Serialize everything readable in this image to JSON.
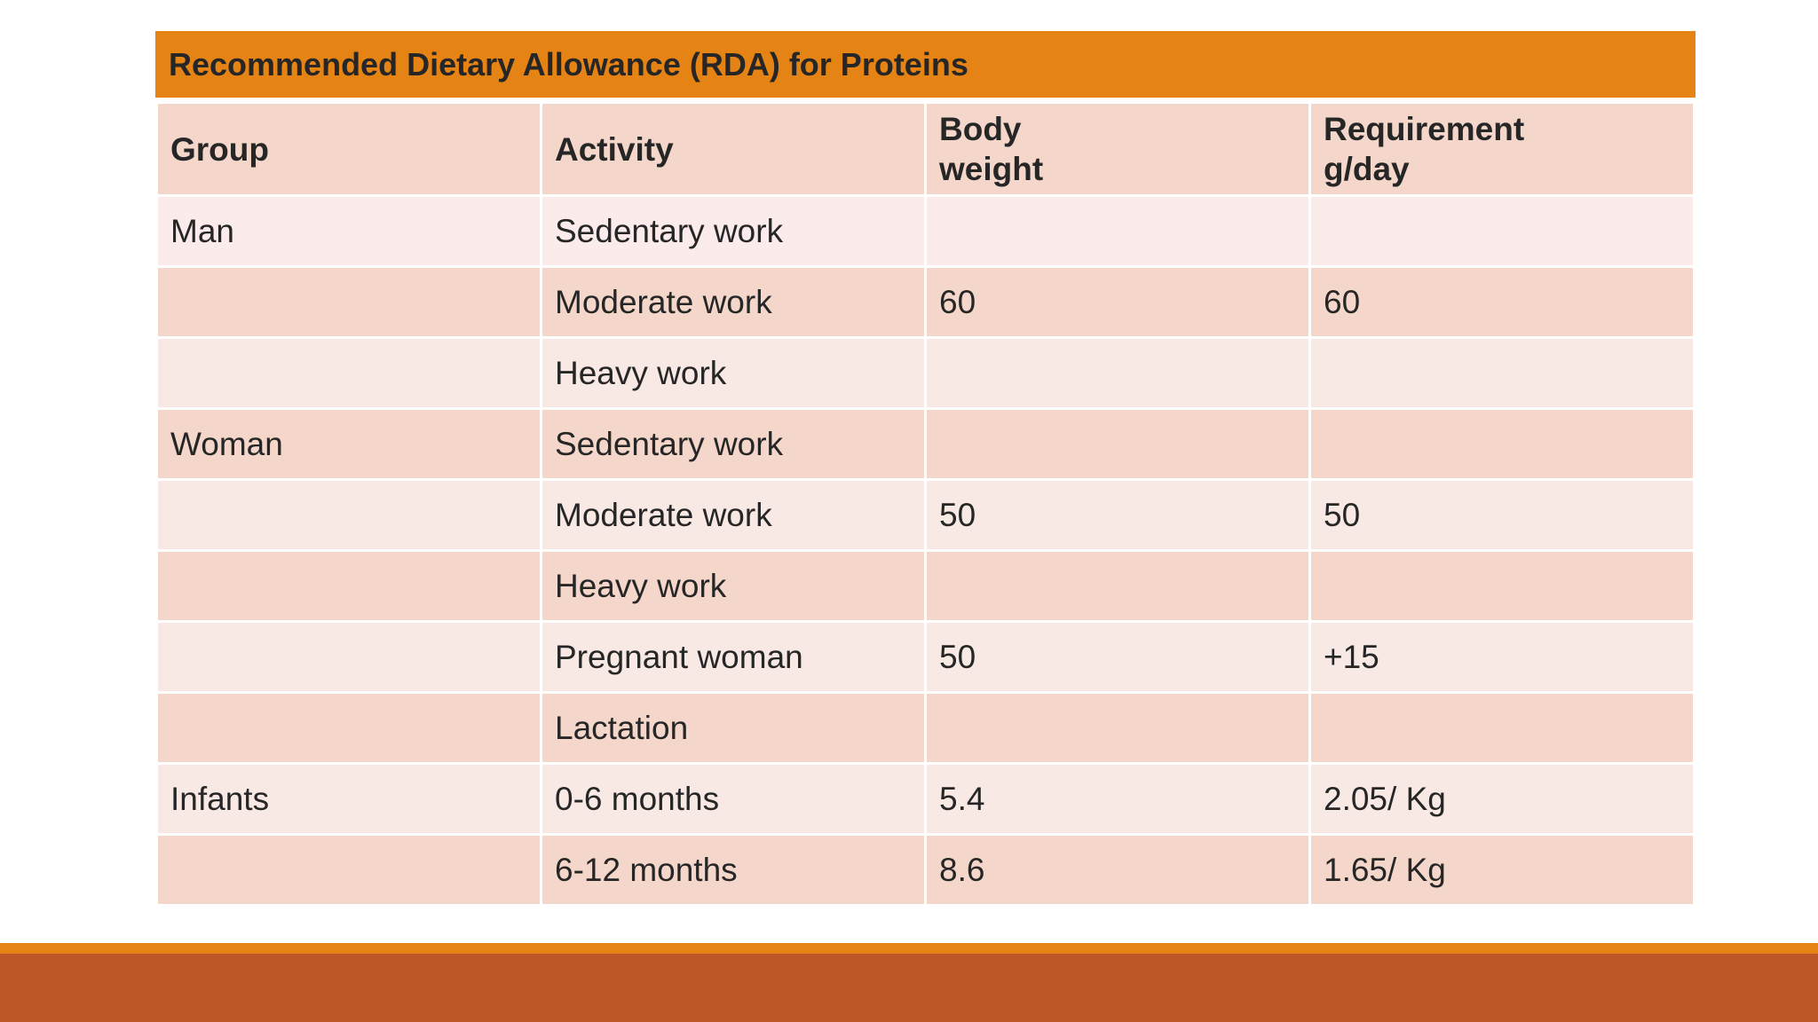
{
  "table": {
    "title": "Recommended Dietary Allowance (RDA) for Proteins",
    "headers": {
      "group": "Group",
      "activity": "Activity",
      "body_weight": "Body\nweight",
      "requirement": "Requirement\ng/day"
    },
    "rows": [
      {
        "group": "Man",
        "activity": "Sedentary work",
        "body_weight": "",
        "requirement": ""
      },
      {
        "group": "",
        "activity": "Moderate work",
        "body_weight": "60",
        "requirement": "60"
      },
      {
        "group": "",
        "activity": "Heavy work",
        "body_weight": "",
        "requirement": ""
      },
      {
        "group": "Woman",
        "activity": "Sedentary work",
        "body_weight": "",
        "requirement": ""
      },
      {
        "group": "",
        "activity": "Moderate work",
        "body_weight": "50",
        "requirement": "50"
      },
      {
        "group": "",
        "activity": "Heavy work",
        "body_weight": "",
        "requirement": ""
      },
      {
        "group": "",
        "activity": "Pregnant woman",
        "body_weight": "50",
        "requirement": "+15"
      },
      {
        "group": "",
        "activity": "Lactation",
        "body_weight": "",
        "requirement": ""
      },
      {
        "group": "Infants",
        "activity": "0-6 months",
        "body_weight": "5.4",
        "requirement": "2.05/ Kg"
      },
      {
        "group": "",
        "activity": "6-12 months",
        "body_weight": "8.6",
        "requirement": "1.65/ Kg"
      }
    ]
  },
  "colors": {
    "accent": "#e58314",
    "footer": "#bd5627",
    "row_dark": "#f4d7ca",
    "row_light": "#f8e9e5"
  }
}
